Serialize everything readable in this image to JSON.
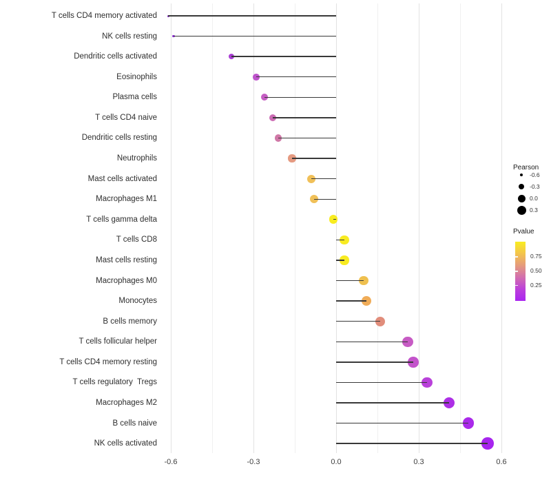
{
  "chart_data": {
    "type": "scatter",
    "variant": "lollipop",
    "title": "",
    "xlabel": "",
    "ylabel": "",
    "grid": true,
    "x_axis": {
      "tick_labels": [
        "-0.6",
        "-0.3",
        "0.0",
        "0.3",
        "0.6"
      ],
      "tick_values": [
        -0.6,
        -0.3,
        0.0,
        0.3,
        0.6
      ],
      "minor_tick_values": [
        -0.45,
        -0.15,
        0.15,
        0.45
      ],
      "range": [
        -0.67,
        0.62
      ]
    },
    "points": [
      {
        "label": "T cells CD4 memory activated",
        "pearson": -0.61,
        "color": "#8B2BD3"
      },
      {
        "label": "NK cells resting",
        "pearson": -0.59,
        "color": "#8E2ED6"
      },
      {
        "label": "Dendritic cells activated",
        "pearson": -0.38,
        "color": "#AA3FD4"
      },
      {
        "label": "Eosinophils",
        "pearson": -0.29,
        "color": "#BE54CC"
      },
      {
        "label": "Plasma cells",
        "pearson": -0.26,
        "color": "#C55EC3"
      },
      {
        "label": "T cells CD4 naive",
        "pearson": -0.23,
        "color": "#CB6BB3"
      },
      {
        "label": "Dendritic cells resting",
        "pearson": -0.21,
        "color": "#D078A7"
      },
      {
        "label": "Neutrophils",
        "pearson": -0.16,
        "color": "#E59A81"
      },
      {
        "label": "Mast cells activated",
        "pearson": -0.09,
        "color": "#F0C058"
      },
      {
        "label": "Macrophages M1",
        "pearson": -0.08,
        "color": "#F0C058"
      },
      {
        "label": "T cells gamma delta",
        "pearson": -0.01,
        "color": "#F8EC20"
      },
      {
        "label": "T cells CD8",
        "pearson": 0.03,
        "color": "#F8EB21"
      },
      {
        "label": "Mast cells resting",
        "pearson": 0.03,
        "color": "#F8EB21"
      },
      {
        "label": "Macrophages M0",
        "pearson": 0.1,
        "color": "#EFC04F"
      },
      {
        "label": "Monocytes",
        "pearson": 0.11,
        "color": "#F0AC58"
      },
      {
        "label": "B cells memory",
        "pearson": 0.16,
        "color": "#E18D7B"
      },
      {
        "label": "T cells follicular helper",
        "pearson": 0.26,
        "color": "#C75BC4"
      },
      {
        "label": "T cells CD4 memory resting",
        "pearson": 0.28,
        "color": "#C353CB"
      },
      {
        "label": "T cells regulatory  Tregs",
        "pearson": 0.33,
        "color": "#B941DA"
      },
      {
        "label": "Macrophages M2",
        "pearson": 0.41,
        "color": "#AD2FE6"
      },
      {
        "label": "B cells naive",
        "pearson": 0.48,
        "color": "#AA29EA"
      },
      {
        "label": "NK cells activated",
        "pearson": 0.55,
        "color": "#A725EE"
      }
    ],
    "legend_size": {
      "title": "Pearson",
      "labels": [
        "-0.6",
        "-0.3",
        "0.0",
        "0.3"
      ],
      "values": [
        -0.6,
        -0.3,
        0.0,
        0.3
      ],
      "dot_color": "#000000"
    },
    "legend_color": {
      "title": "Pvalue",
      "tick_labels": [
        "0.75",
        "0.50",
        "0.25"
      ],
      "gradient_top_to_bottom": [
        "#F9ED21",
        "#F3C44C",
        "#E59B7C",
        "#D26FAE",
        "#BC41DA",
        "#AB25F0"
      ]
    }
  },
  "colors": {
    "background": "#FFFFFF",
    "stick": "#383838",
    "gridline_major": "#E2E2E2",
    "gridline_minor": "#F0F0F0",
    "axis_text": "#404040"
  }
}
